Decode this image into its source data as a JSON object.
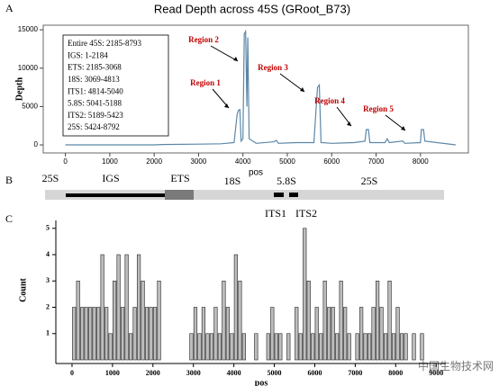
{
  "chart_data": [
    {
      "type": "line",
      "title": "Read Depth across 45S (GRoot_B73)",
      "x_label": "pos",
      "y_label": "Depth",
      "x": [
        0,
        1000,
        2000,
        2185,
        3000,
        3500,
        3800,
        3870,
        3900,
        3930,
        3960,
        4000,
        4030,
        4060,
        4090,
        4110,
        4140,
        4300,
        4700,
        4750,
        4800,
        5200,
        5600,
        5680,
        5720,
        5760,
        6000,
        6500,
        6750,
        6780,
        6830,
        6860,
        7200,
        7250,
        7300,
        7600,
        7650,
        8000,
        8020,
        8070,
        8100,
        8793
      ],
      "values": [
        0,
        0,
        0,
        50,
        100,
        150,
        300,
        4000,
        4500,
        4600,
        500,
        800,
        14500,
        14800,
        5000,
        14000,
        800,
        200,
        400,
        600,
        200,
        300,
        300,
        7500,
        7800,
        300,
        200,
        300,
        500,
        2000,
        2000,
        300,
        300,
        800,
        300,
        500,
        200,
        300,
        2000,
        2000,
        500,
        0
      ],
      "color": "#5b87a8",
      "xlim": [
        -500,
        9080
      ],
      "xticks": [
        0,
        1000,
        2000,
        3000,
        4000,
        5000,
        6000,
        7000,
        8000
      ],
      "ylim": [
        -1050,
        15600
      ],
      "yticks": [
        0,
        5000,
        10000,
        15000
      ],
      "info_box": [
        "Entire 45S: 2185-8793",
        "IGS: 1-2184",
        "ETS: 2185-3068",
        "18S: 3069-4813",
        "ITS1: 4814-5040",
        "5.8S: 5041-5188",
        "ITS2: 5189-5423",
        "25S: 5424-8792"
      ],
      "annotations": [
        "Region 1",
        "Region 2",
        "Region 3",
        "Region 4",
        "Region 5"
      ]
    },
    {
      "type": "histogram",
      "x_label": "pos",
      "y_label": "Count",
      "bins": [
        0,
        100,
        200,
        300,
        400,
        500,
        600,
        700,
        800,
        900,
        1000,
        1100,
        1200,
        1300,
        1400,
        1500,
        1600,
        1700,
        1800,
        1900,
        2000,
        2100,
        2200,
        2300,
        2400,
        2500,
        2600,
        2700,
        2800,
        2900,
        3000,
        3100,
        3200,
        3300,
        3400,
        3500,
        3600,
        3700,
        3800,
        3900,
        4000,
        4100,
        4200,
        4300,
        4400,
        4500,
        4600,
        4700,
        4800,
        4900,
        5000,
        5100,
        5200,
        5300,
        5400,
        5500,
        5600,
        5700,
        5800,
        5900,
        6000,
        6100,
        6200,
        6300,
        6400,
        6500,
        6600,
        6700,
        6800,
        6900,
        7000,
        7100,
        7200,
        7300,
        7400,
        7500,
        7600,
        7700,
        7800,
        7900,
        8000,
        8100,
        8200,
        8300,
        8400,
        8500,
        8600,
        8700,
        8800
      ],
      "values": [
        2,
        3,
        2,
        2,
        2,
        2,
        2,
        4,
        2,
        1,
        3,
        4,
        2,
        4,
        1,
        2,
        4,
        3,
        2,
        2,
        2,
        3,
        0,
        0,
        0,
        0,
        0,
        0,
        0,
        1,
        2,
        1,
        2,
        1,
        1,
        2,
        1,
        3,
        2,
        1,
        4,
        3,
        1,
        0,
        0,
        1,
        0,
        0,
        1,
        2,
        1,
        1,
        0,
        1,
        0,
        2,
        1,
        5,
        3,
        1,
        2,
        1,
        3,
        2,
        2,
        1,
        3,
        2,
        1,
        0,
        1,
        2,
        1,
        1,
        2,
        3,
        2,
        1,
        3,
        1,
        2,
        1,
        1,
        0,
        1,
        0,
        1,
        0
      ],
      "color": "#bdbdbd",
      "xlim": [
        -400,
        9240
      ],
      "xticks": [
        0,
        1000,
        2000,
        3000,
        4000,
        5000,
        6000,
        7000,
        8000,
        9000
      ],
      "ylim": [
        0,
        5.3
      ],
      "yticks": [
        1,
        2,
        3,
        4,
        5
      ]
    }
  ],
  "diagram": {
    "labels": [
      "25S",
      "IGS",
      "ETS",
      "18S",
      "5.8S",
      "25S",
      "ITS1",
      "ITS2"
    ]
  },
  "panel_labels": [
    "A",
    "B",
    "C"
  ],
  "watermark": "中国生物技术网"
}
